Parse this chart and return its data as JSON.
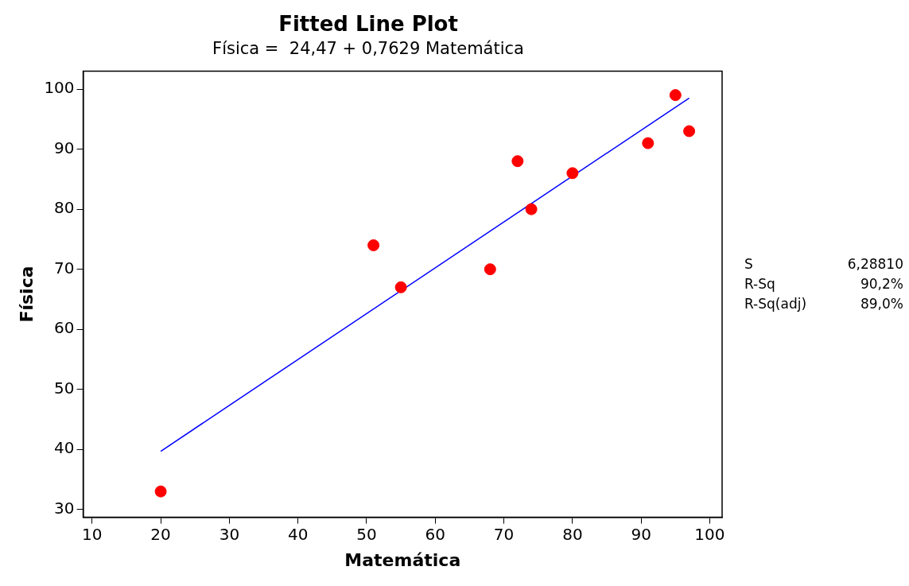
{
  "chart_data": {
    "type": "scatter",
    "title": "Fitted Line Plot",
    "subtitle": "Física =  24,47 + 0,7629 Matemática",
    "xlabel": "Matemática",
    "ylabel": "Física",
    "x": [
      20,
      51,
      55,
      68,
      72,
      74,
      80,
      91,
      95,
      97
    ],
    "series": [
      {
        "type": "scatter",
        "color": "#ff0000",
        "marker": "circle",
        "values": [
          33,
          74,
          67,
          70,
          88,
          80,
          86,
          91,
          99,
          93
        ]
      },
      {
        "type": "line",
        "color": "#0000ff",
        "marker": "none",
        "line_style": "solid",
        "x": [
          20,
          97
        ],
        "values": [
          39.7,
          98.5
        ]
      }
    ],
    "xlim": [
      8.7,
      101.8
    ],
    "ylim": [
      28.7,
      103
    ],
    "xticks": [
      10,
      20,
      30,
      40,
      50,
      60,
      70,
      80,
      90,
      100
    ],
    "yticks": [
      30,
      40,
      50,
      60,
      70,
      80,
      90,
      100
    ],
    "grid": false,
    "legend": false,
    "annotations": [
      "S 6,28810",
      "R-Sq 90,2%",
      "R-Sq(adj) 89,0%"
    ]
  }
}
